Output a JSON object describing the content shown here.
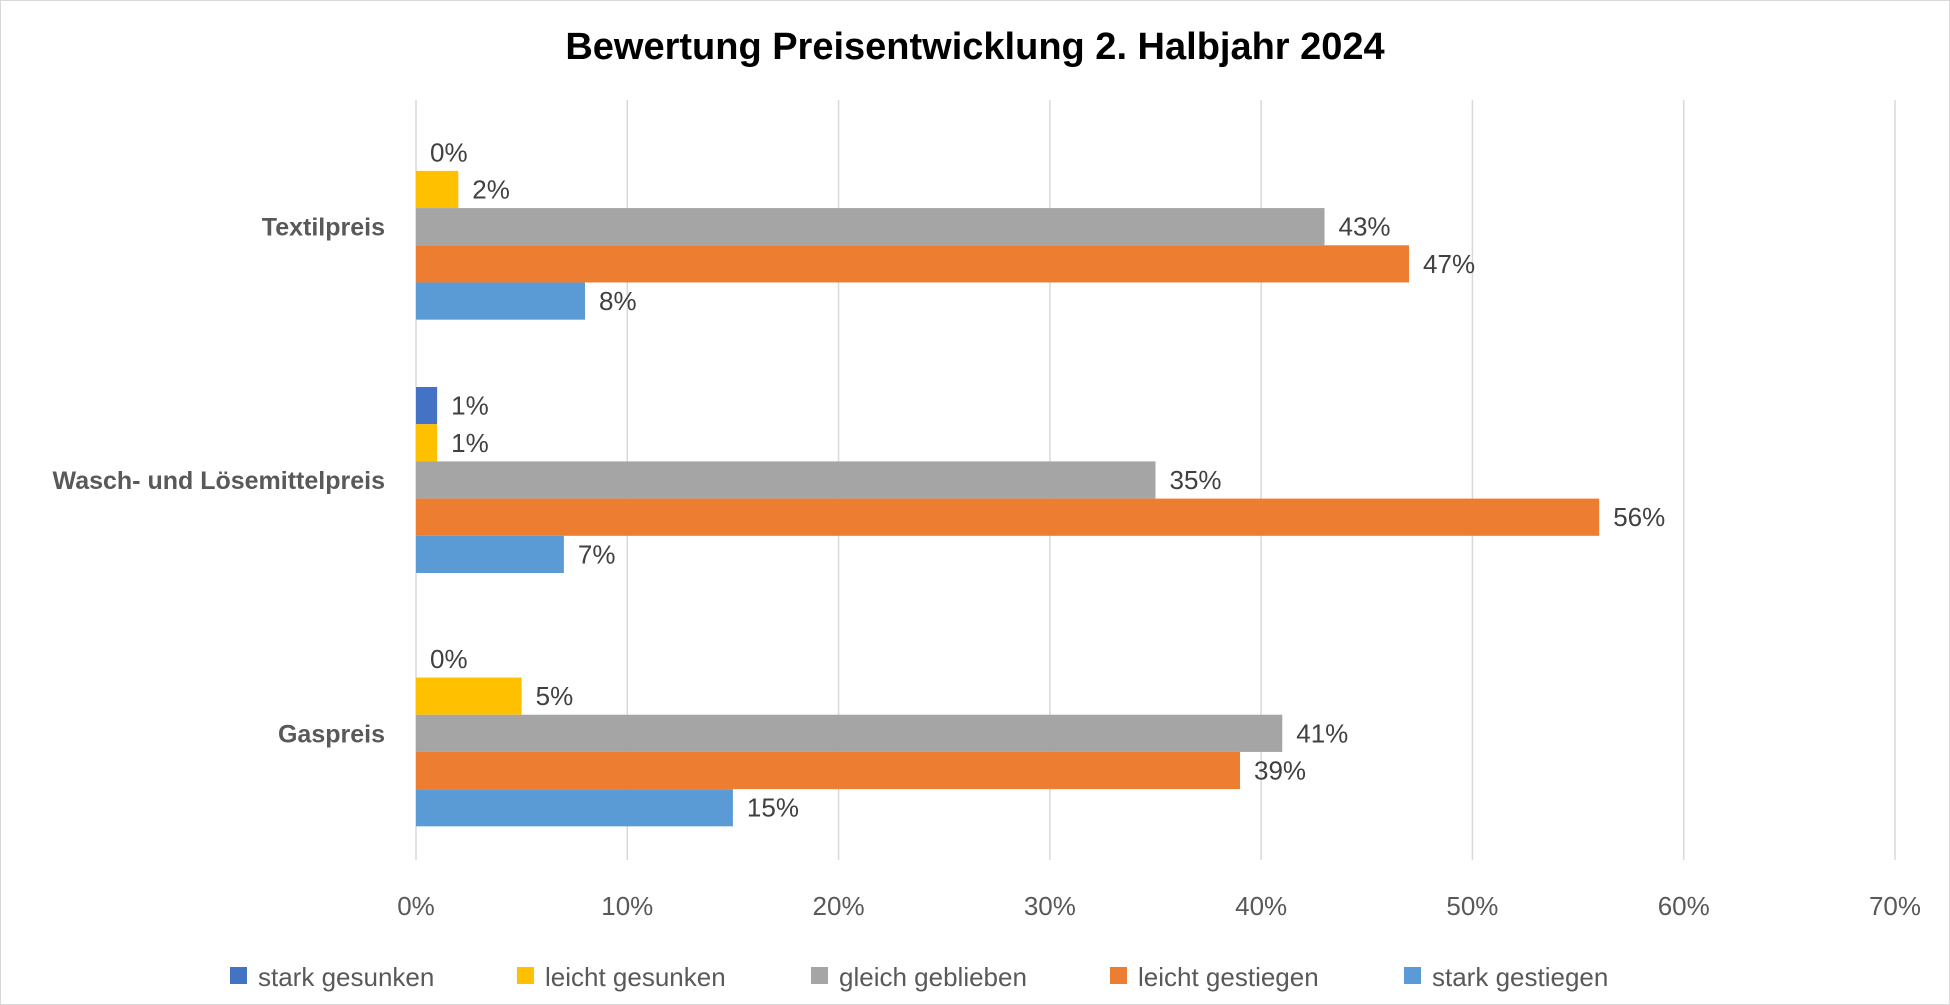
{
  "chart_data": {
    "type": "bar",
    "orientation": "horizontal",
    "title": "Bewertung Preisentwicklung 2. Halbjahr 2024",
    "categories": [
      "Textilpreis",
      "Wasch- und Lösemittelpreis",
      "Gaspreis"
    ],
    "series": [
      {
        "name": "stark gesunken",
        "color": "#4472C4",
        "values": [
          0,
          1,
          0
        ],
        "labels": [
          "0%",
          "1%",
          "0%"
        ]
      },
      {
        "name": "leicht gesunken",
        "color": "#FFC000",
        "values": [
          2,
          1,
          5
        ],
        "labels": [
          "2%",
          "1%",
          "5%"
        ]
      },
      {
        "name": "gleich geblieben",
        "color": "#A5A5A5",
        "values": [
          43,
          35,
          41
        ],
        "labels": [
          "43%",
          "35%",
          "41%"
        ]
      },
      {
        "name": "leicht gestiegen",
        "color": "#ED7D31",
        "values": [
          47,
          56,
          39
        ],
        "labels": [
          "47%",
          "56%",
          "39%"
        ]
      },
      {
        "name": "stark gestiegen",
        "color": "#5B9BD5",
        "values": [
          8,
          7,
          15
        ],
        "labels": [
          "8%",
          "7%",
          "15%"
        ]
      }
    ],
    "xlim": [
      0,
      70
    ],
    "xticks": [
      "0%",
      "10%",
      "20%",
      "30%",
      "40%",
      "50%",
      "60%",
      "70%"
    ],
    "xlabel": "",
    "ylabel": "",
    "grid": "vertical",
    "legend": "bottom"
  }
}
